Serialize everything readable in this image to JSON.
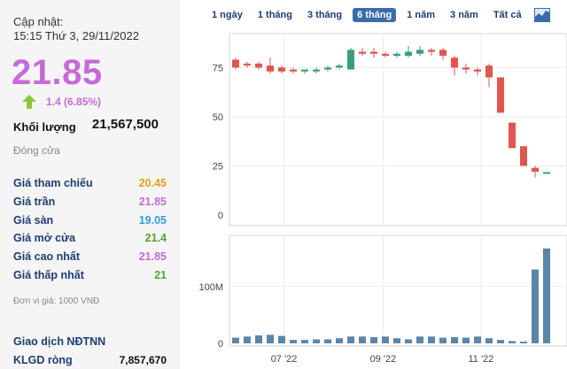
{
  "update": {
    "label": "Cập nhật:",
    "time": "15:15 Thứ 3, 29/11/2022"
  },
  "price": "21.85",
  "change": "1.4 (6.85%)",
  "volume": {
    "label": "Khối lượng",
    "value": "21,567,500"
  },
  "status": "Đóng cửa",
  "stats": [
    {
      "label": "Giá tham chiếu",
      "value": "20.45",
      "color": "#e0a020"
    },
    {
      "label": "Giá trần",
      "value": "21.85",
      "color": "#c66bd8"
    },
    {
      "label": "Giá sàn",
      "value": "19.05",
      "color": "#2e9fd6"
    },
    {
      "label": "Giá mở cửa",
      "value": "21.4",
      "color": "#5aa02c"
    },
    {
      "label": "Giá cao nhất",
      "value": "21.85",
      "color": "#c66bd8"
    },
    {
      "label": "Giá thấp nhất",
      "value": "21",
      "color": "#5aa02c"
    }
  ],
  "unit": "Đơn vị giá: 1000 VNĐ",
  "foreign": {
    "title": "Giao dịch NĐTNN",
    "net_label": "KLGD ròng",
    "net_value": "7,857,670"
  },
  "tabs": [
    {
      "label": "1 ngày",
      "active": false
    },
    {
      "label": "1 tháng",
      "active": false
    },
    {
      "label": "3 tháng",
      "active": false
    },
    {
      "label": "6 tháng",
      "active": true
    },
    {
      "label": "1 năm",
      "active": false
    },
    {
      "label": "3 năm",
      "active": false
    },
    {
      "label": "Tất cả",
      "active": false
    }
  ],
  "colors": {
    "up": "#3a9e7e",
    "down": "#e0554f",
    "volume": "#5b86a8",
    "accent": "#c66bd8"
  },
  "chart_data": {
    "type": "candlestick",
    "price_axis": {
      "ylim": [
        0,
        90
      ],
      "ticks": [
        0,
        25,
        50,
        75
      ]
    },
    "volume_axis": {
      "ylim": [
        0,
        190
      ],
      "ticks": [
        {
          "v": 0,
          "label": "0"
        },
        {
          "v": 100,
          "label": "100M"
        }
      ]
    },
    "x_ticks": [
      {
        "index": 4.2,
        "label": "07 '22"
      },
      {
        "index": 12.8,
        "label": "09 '22"
      },
      {
        "index": 21.3,
        "label": "11 '22"
      }
    ],
    "candles": [
      {
        "o": 79,
        "c": 75,
        "h": 80,
        "l": 74,
        "v": 10
      },
      {
        "o": 77,
        "c": 76,
        "h": 78,
        "l": 75,
        "v": 12
      },
      {
        "o": 77,
        "c": 75,
        "h": 78,
        "l": 74,
        "v": 14
      },
      {
        "o": 76,
        "c": 73,
        "h": 80,
        "l": 72,
        "v": 15
      },
      {
        "o": 75,
        "c": 73,
        "h": 76,
        "l": 72,
        "v": 13
      },
      {
        "o": 74,
        "c": 73,
        "h": 75,
        "l": 72,
        "v": 6
      },
      {
        "o": 73,
        "c": 74,
        "h": 74,
        "l": 72,
        "v": 6
      },
      {
        "o": 73,
        "c": 74,
        "h": 75,
        "l": 72,
        "v": 7
      },
      {
        "o": 74,
        "c": 75,
        "h": 76,
        "l": 73,
        "v": 7
      },
      {
        "o": 75,
        "c": 76,
        "h": 77,
        "l": 74,
        "v": 9
      },
      {
        "o": 74,
        "c": 84,
        "h": 85,
        "l": 74,
        "v": 12
      },
      {
        "o": 83,
        "c": 82,
        "h": 85,
        "l": 81,
        "v": 12
      },
      {
        "o": 83,
        "c": 82,
        "h": 85,
        "l": 80,
        "v": 11
      },
      {
        "o": 82,
        "c": 81,
        "h": 83,
        "l": 80,
        "v": 12
      },
      {
        "o": 81,
        "c": 82,
        "h": 83,
        "l": 80,
        "v": 9
      },
      {
        "o": 81,
        "c": 83,
        "h": 86,
        "l": 80,
        "v": 7
      },
      {
        "o": 82,
        "c": 84,
        "h": 86,
        "l": 81,
        "v": 12
      },
      {
        "o": 84,
        "c": 83,
        "h": 85,
        "l": 81,
        "v": 12
      },
      {
        "o": 84,
        "c": 81,
        "h": 85,
        "l": 79,
        "v": 10
      },
      {
        "o": 80,
        "c": 75,
        "h": 81,
        "l": 71,
        "v": 11
      },
      {
        "o": 75,
        "c": 74,
        "h": 77,
        "l": 72,
        "v": 10
      },
      {
        "o": 74,
        "c": 73,
        "h": 75,
        "l": 71,
        "v": 12
      },
      {
        "o": 76,
        "c": 70,
        "h": 77,
        "l": 65,
        "v": 9
      },
      {
        "o": 70,
        "c": 52,
        "h": 70,
        "l": 52,
        "v": 6
      },
      {
        "o": 47,
        "c": 34,
        "h": 47,
        "l": 34,
        "v": 4
      },
      {
        "o": 35,
        "c": 25,
        "h": 35,
        "l": 25,
        "v": 3
      },
      {
        "o": 24,
        "c": 22,
        "h": 25,
        "l": 19,
        "v": 130
      },
      {
        "o": 21,
        "c": 21.85,
        "h": 21.85,
        "l": 21,
        "v": 167
      }
    ]
  }
}
